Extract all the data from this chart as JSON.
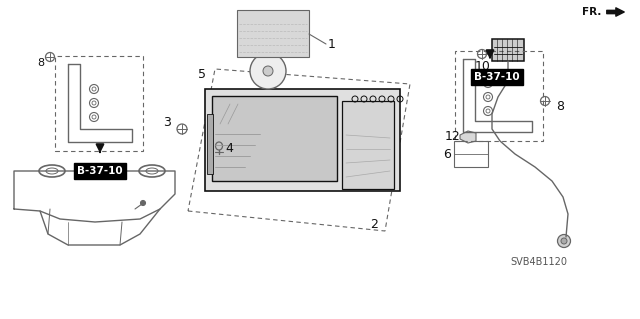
{
  "bg_color": "#ffffff",
  "line_color": "#666666",
  "dark_color": "#111111",
  "diagram_code": "SVB4B1120",
  "b3710_label1": [
    100,
    148
  ],
  "b3710_label2": [
    497,
    242
  ],
  "figsize": [
    6.4,
    3.19
  ],
  "dpi": 100
}
